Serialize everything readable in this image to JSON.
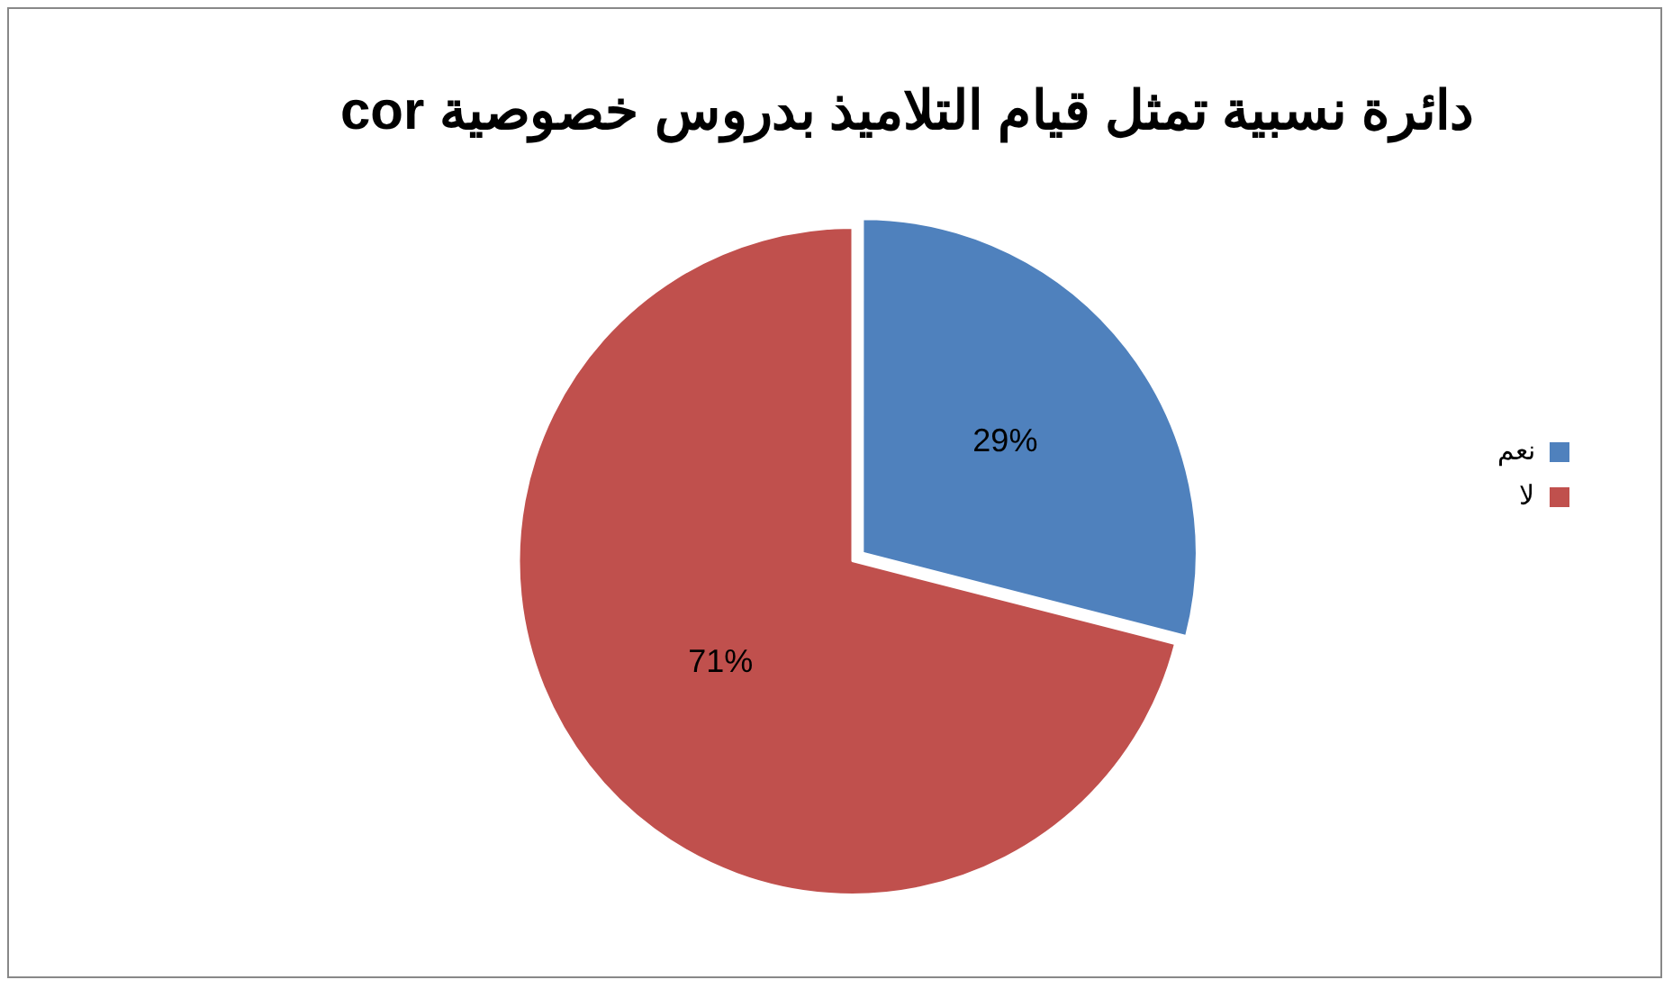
{
  "chart_data": {
    "type": "pie",
    "title": "دائرة نسبية تمثل قيام التلاميذ بدروس خصوصية cor",
    "categories": [
      "نعم",
      "لا"
    ],
    "values": [
      29,
      71
    ],
    "colors": [
      "#4f81bd",
      "#c0504d"
    ],
    "value_labels": [
      "29%",
      "71%"
    ],
    "legend": "right"
  }
}
